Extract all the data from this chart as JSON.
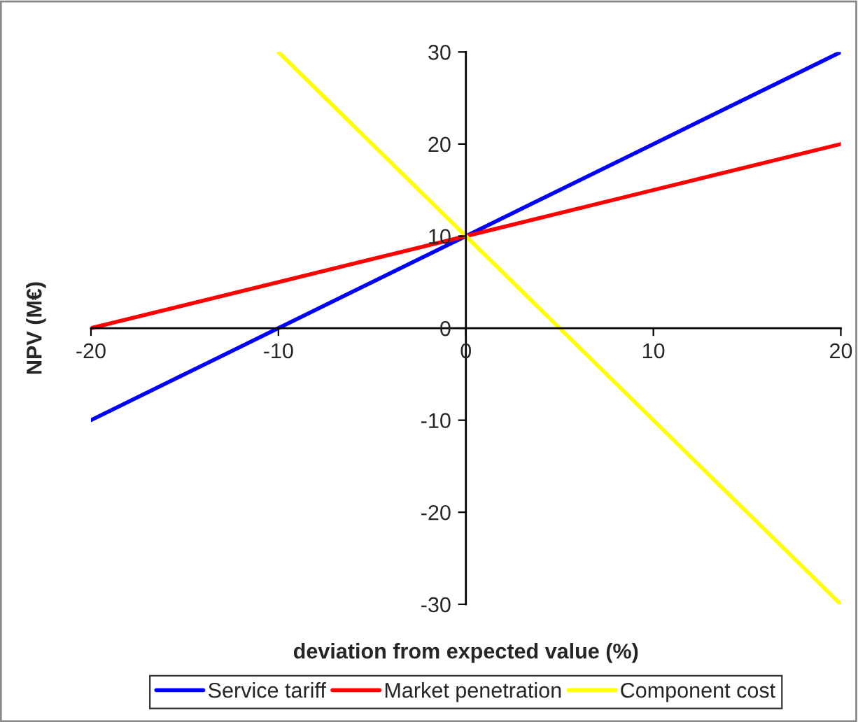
{
  "chart_data": {
    "type": "line",
    "xlabel": "deviation from expected value (%)",
    "ylabel": "NPV (M€)",
    "xlim": [
      -20,
      20
    ],
    "ylim": [
      -30,
      30
    ],
    "xticks": [
      -20,
      -10,
      0,
      10,
      20
    ],
    "yticks": [
      -30,
      -20,
      -10,
      0,
      10,
      20,
      30
    ],
    "grid": false,
    "legend": "bottom",
    "marker": "none",
    "line_style": "solid",
    "series": [
      {
        "name": "Service tariff",
        "color": "#0000ff",
        "x": [
          -20,
          -10,
          0,
          10,
          20
        ],
        "values": [
          -10,
          0,
          10,
          20,
          30
        ]
      },
      {
        "name": "Market penetration",
        "color": "#ff0000",
        "x": [
          -20,
          -10,
          0,
          10,
          20
        ],
        "values": [
          0,
          5,
          10,
          15,
          20
        ]
      },
      {
        "name": "Component cost",
        "color": "#ffff00",
        "x": [
          -10,
          0,
          10,
          20
        ],
        "values": [
          30,
          10,
          -10,
          -30
        ]
      }
    ]
  }
}
